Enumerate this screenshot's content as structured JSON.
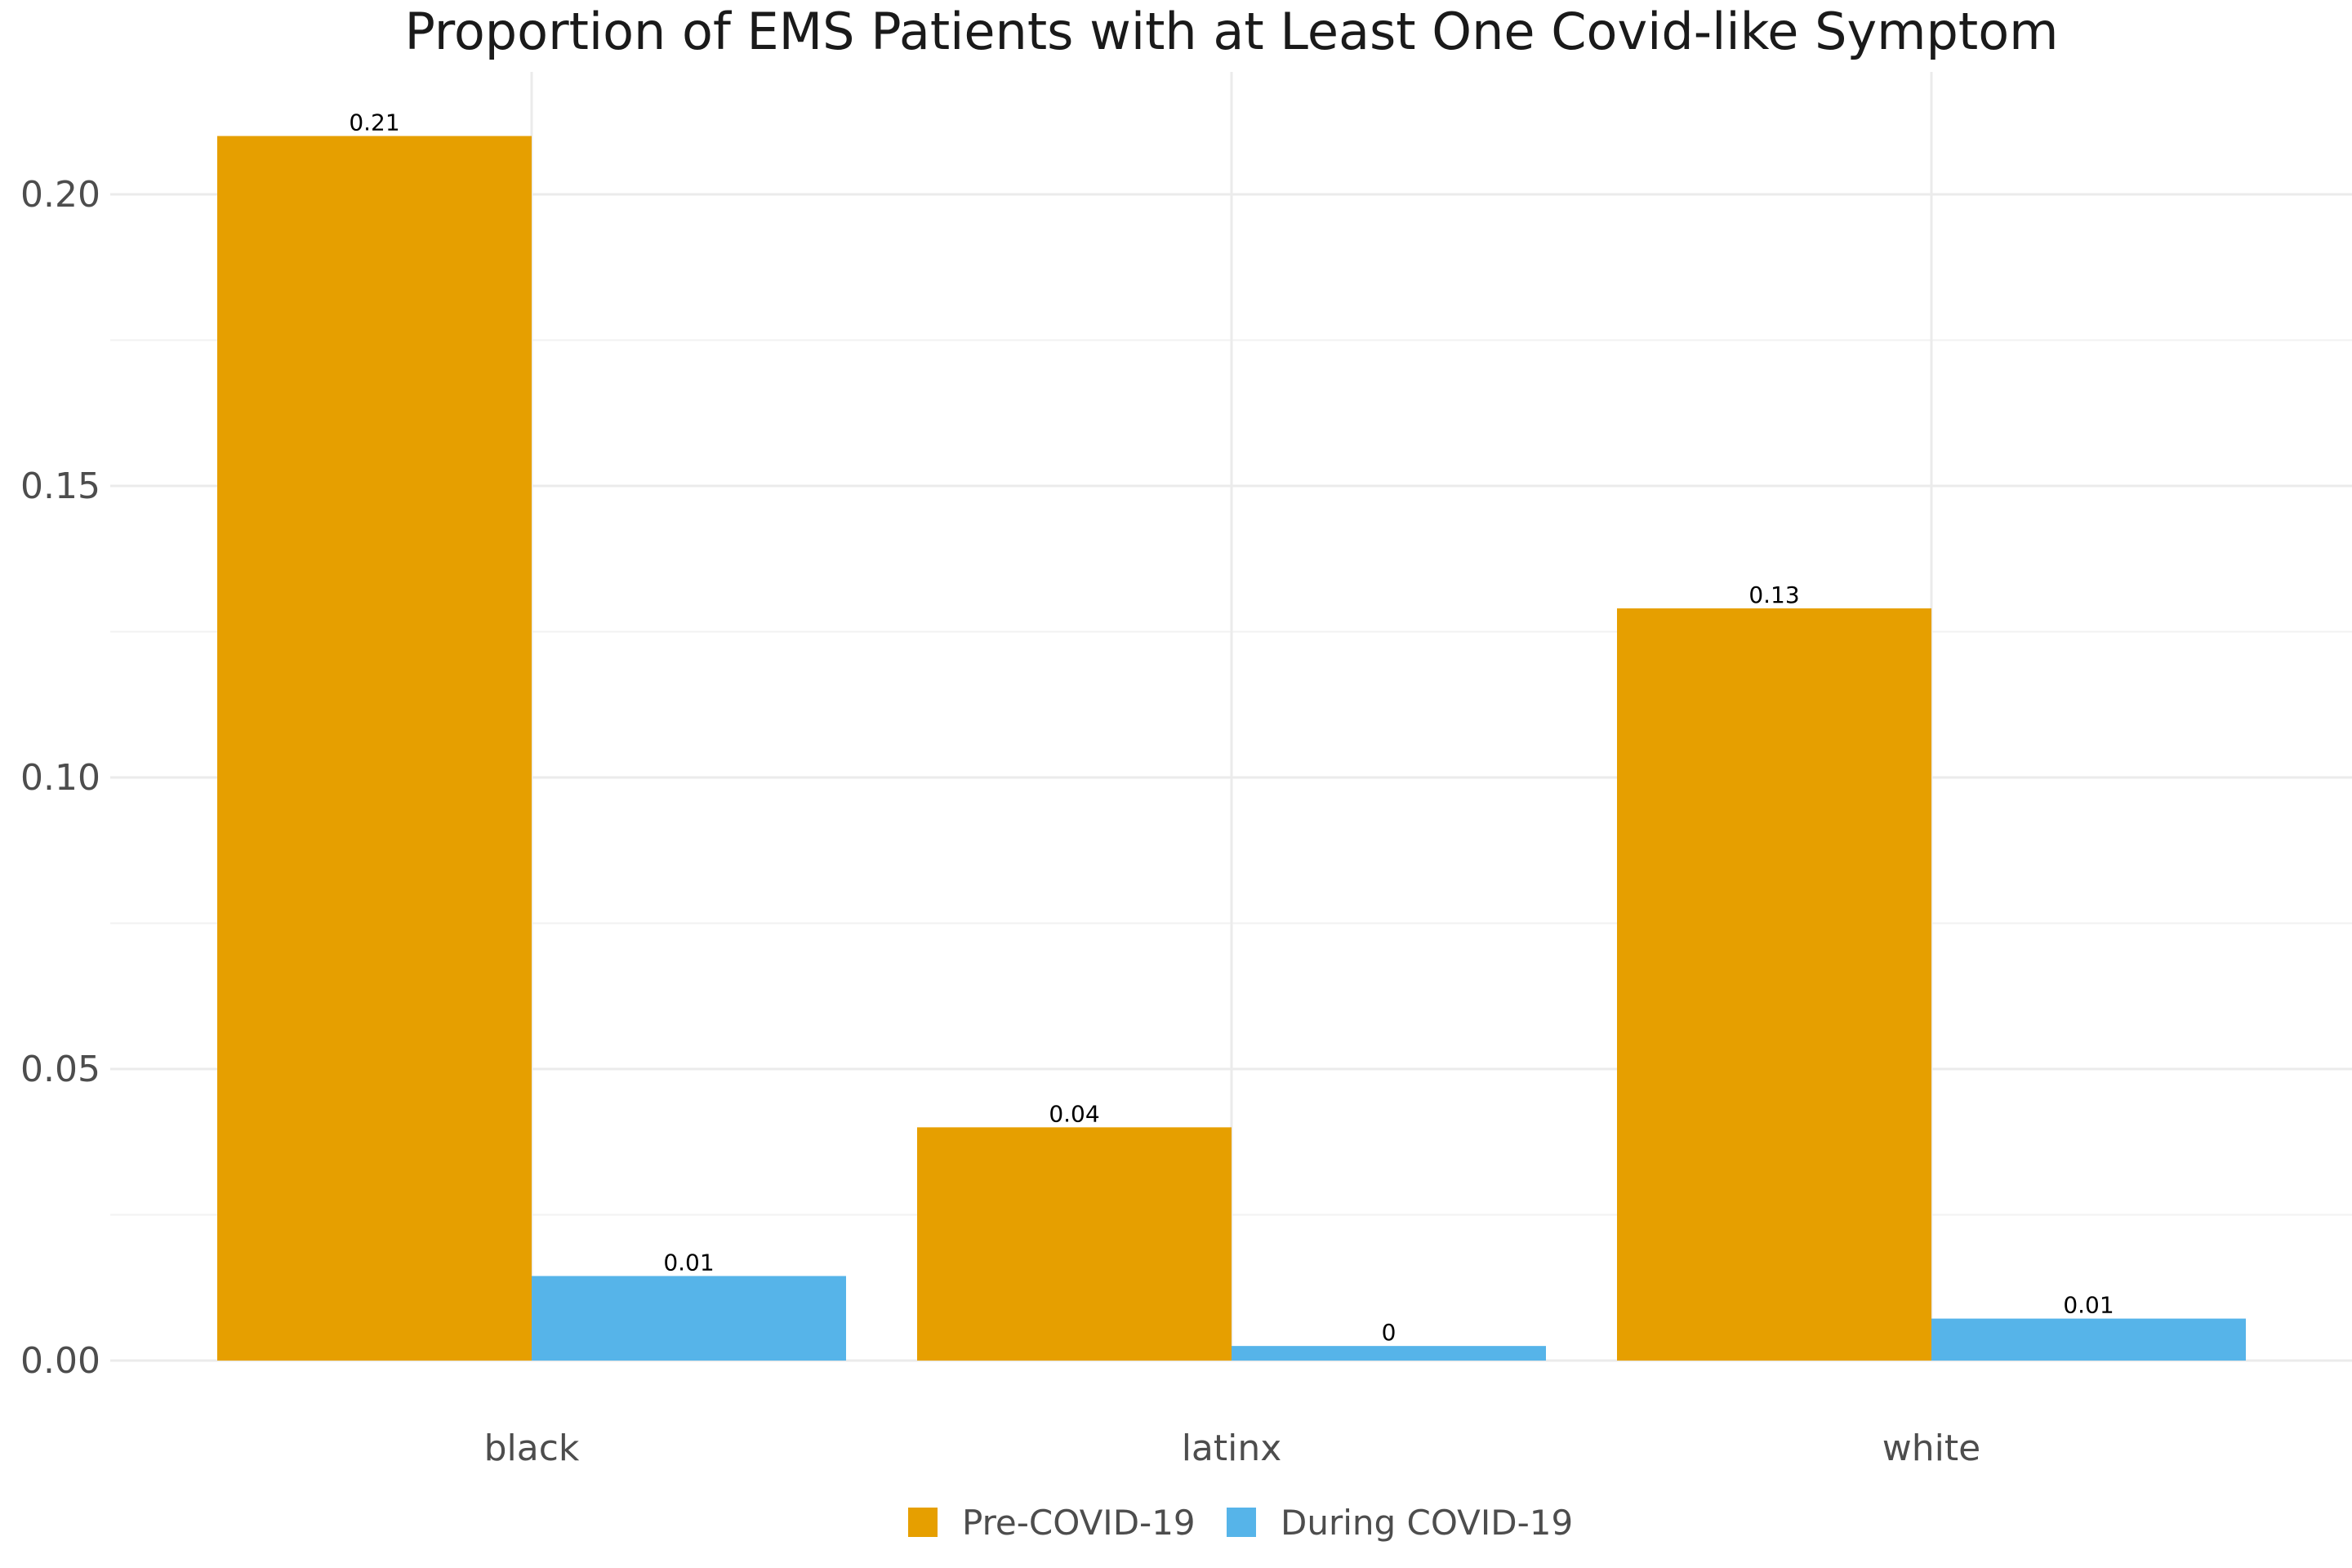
{
  "chart_data": {
    "type": "bar",
    "title": "Proportion of EMS Patients with at Least One Covid-like Symptom",
    "xlabel": "",
    "ylabel": "",
    "categories": [
      "black",
      "latinx",
      "white"
    ],
    "series": [
      {
        "name": "Pre-COVID-19",
        "color": "#E69F00",
        "values": [
          0.21,
          0.04,
          0.129
        ],
        "labels": [
          "0.21",
          "0.04",
          "0.13"
        ]
      },
      {
        "name": "During COVID-19",
        "color": "#56B4E9",
        "values": [
          0.0145,
          0.0025,
          0.0072
        ],
        "labels": [
          "0.01",
          "0",
          "0.01"
        ]
      }
    ],
    "ylim": [
      0,
      0.221
    ],
    "yticks": [
      0.0,
      0.05,
      0.1,
      0.15,
      0.2
    ],
    "ytick_labels": [
      "0.00",
      "0.05",
      "0.10",
      "0.15",
      "0.20"
    ],
    "grid": true,
    "legend_position": "bottom"
  }
}
